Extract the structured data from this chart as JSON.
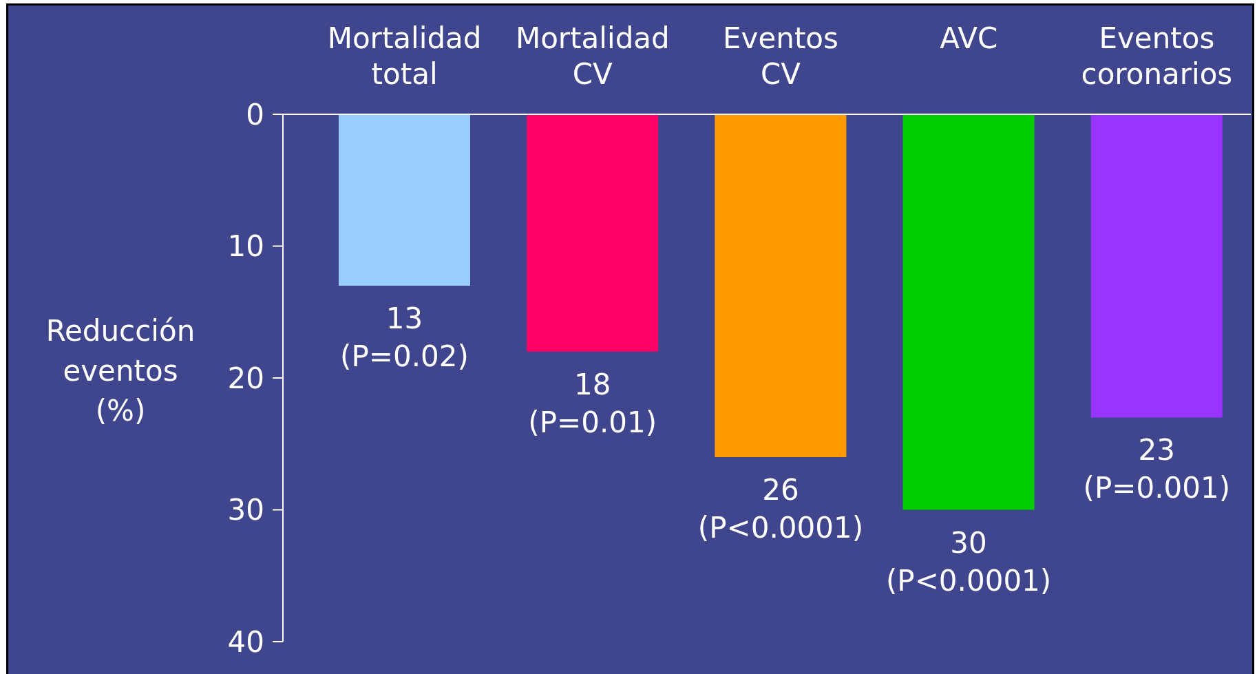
{
  "chart_data": {
    "type": "bar",
    "categories": [
      "Mortalidad total",
      "Mortalidad CV",
      "Eventos CV",
      "AVC",
      "Eventos coronarios"
    ],
    "values": [
      13,
      18,
      26,
      30,
      23
    ],
    "colors": [
      "#99ccff",
      "#ff0066",
      "#ff9900",
      "#00cc00",
      "#9933ff"
    ],
    "value_labels": [
      "13 (P=0.02)",
      "18 (P=0.01)",
      "26 (P<0.0001)",
      "30 (P<0.0001)",
      "23 (P=0.001)"
    ],
    "ylabel": "Reducción eventos (%)",
    "ylim": [
      40,
      0
    ],
    "yticks": [
      0,
      10,
      20,
      30,
      40
    ]
  }
}
